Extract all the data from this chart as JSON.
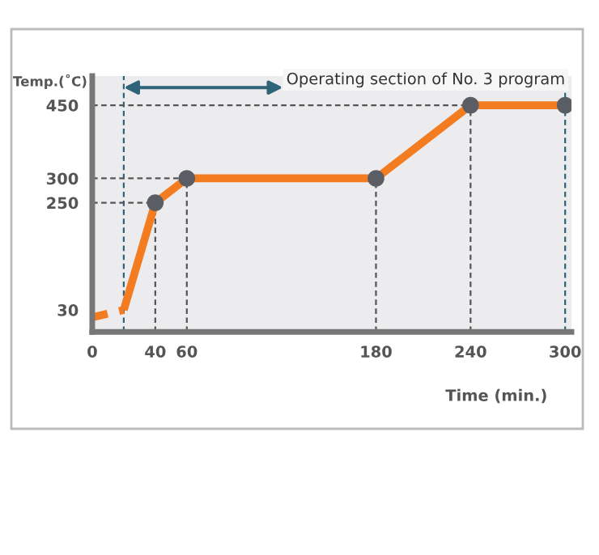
{
  "chart_data": {
    "type": "line",
    "xlabel": "Time (min.)",
    "ylabel": "Temp.(˚C)",
    "series": [
      {
        "type": "line",
        "color": "#f47c20",
        "line_style": "dashed",
        "x": [
          0,
          20
        ],
        "values": [
          15,
          30
        ]
      },
      {
        "type": "line",
        "color": "#f47c20",
        "line_style": "solid",
        "x": [
          20,
          40,
          60,
          180,
          240,
          300
        ],
        "values": [
          30,
          250,
          300,
          300,
          450,
          450
        ]
      },
      {
        "type": "scatter",
        "color": "#5a5d63",
        "marker": "circle",
        "x": [
          40,
          60,
          180,
          240,
          300
        ],
        "values": [
          250,
          300,
          300,
          450,
          450
        ]
      }
    ],
    "xlim": [
      0,
      304
    ],
    "xticks": [
      0,
      40,
      60,
      180,
      240,
      300
    ],
    "ylim": [
      -15,
      510
    ],
    "yticks": [
      30,
      250,
      300,
      450
    ],
    "ref_lines": [
      {
        "axis": "x",
        "value": 20,
        "color": "#2e6378",
        "line_style": "dashed"
      },
      {
        "axis": "x",
        "value": 300,
        "color": "#2e6378",
        "line_style": "dashed"
      },
      {
        "axis": "x",
        "value": 40,
        "color": "#555555",
        "line_style": "dashed"
      },
      {
        "axis": "x",
        "value": 60,
        "color": "#555555",
        "line_style": "dashed"
      },
      {
        "axis": "x",
        "value": 180,
        "color": "#555555",
        "line_style": "dashed"
      },
      {
        "axis": "x",
        "value": 240,
        "color": "#555555",
        "line_style": "dashed"
      },
      {
        "axis": "y",
        "value": 250,
        "color": "#555555",
        "line_style": "dashed"
      },
      {
        "axis": "y",
        "value": 300,
        "color": "#555555",
        "line_style": "dashed"
      },
      {
        "axis": "y",
        "value": 450,
        "color": "#555555",
        "line_style": "dashed"
      }
    ],
    "annotations": [
      "Operating section of No. 3 program"
    ],
    "grid": false,
    "legend": false
  }
}
